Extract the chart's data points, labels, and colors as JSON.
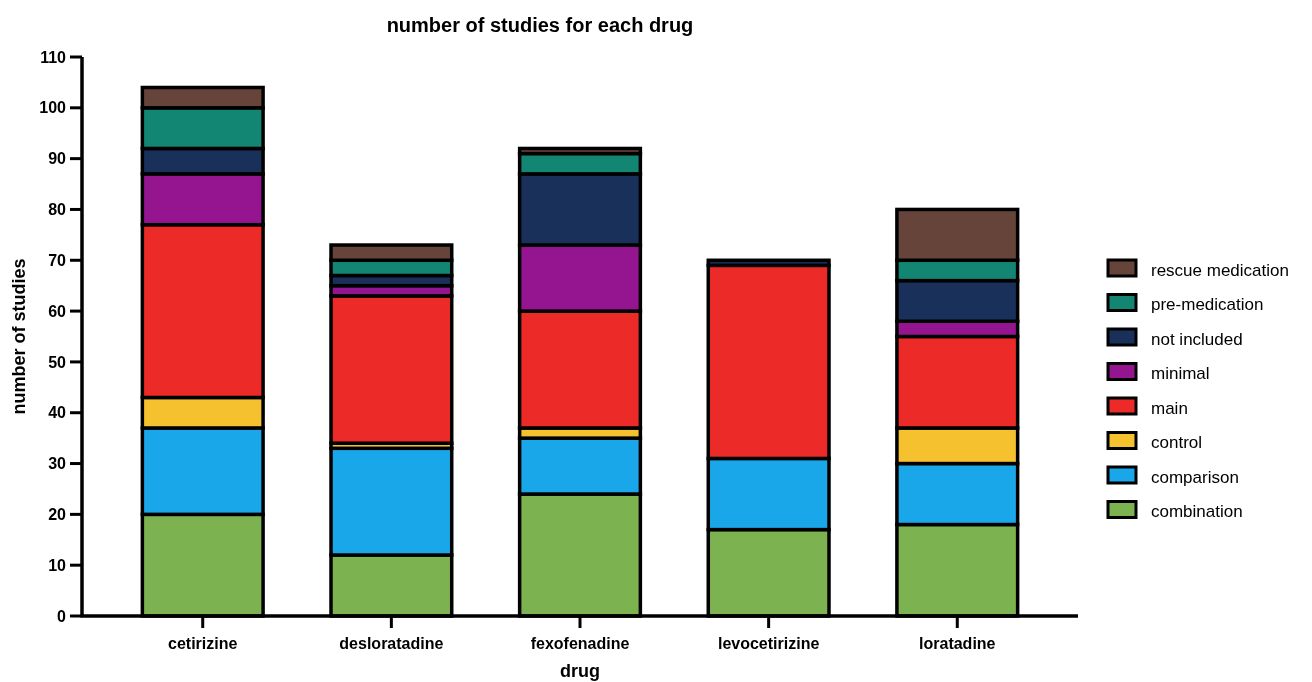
{
  "chart_data": {
    "type": "bar",
    "stacked": true,
    "title": "number of studies for each drug",
    "xlabel": "drug",
    "ylabel": "number of studies",
    "categories": [
      "cetirizine",
      "desloratadine",
      "fexofenadine",
      "levocetirizine",
      "loratadine"
    ],
    "series": [
      {
        "name": "combination",
        "color": "#7cb350",
        "values": [
          20,
          12,
          24,
          17,
          18
        ]
      },
      {
        "name": "comparison",
        "color": "#19a7ea",
        "values": [
          17,
          21,
          11,
          14,
          12
        ]
      },
      {
        "name": "control",
        "color": "#f5c12e",
        "values": [
          6,
          1,
          2,
          0,
          7
        ]
      },
      {
        "name": "main",
        "color": "#ec2a28",
        "values": [
          34,
          29,
          23,
          38,
          18
        ]
      },
      {
        "name": "minimal",
        "color": "#951490",
        "values": [
          10,
          2,
          13,
          0,
          3
        ]
      },
      {
        "name": "not included",
        "color": "#18305a",
        "values": [
          5,
          2,
          14,
          1,
          8
        ]
      },
      {
        "name": "pre-medication",
        "color": "#128672",
        "values": [
          8,
          3,
          4,
          0,
          4
        ]
      },
      {
        "name": "rescue medication",
        "color": "#664439",
        "values": [
          4,
          3,
          1,
          0,
          10
        ]
      }
    ],
    "ylim": [
      0,
      110
    ],
    "yticks": [
      0,
      10,
      20,
      30,
      40,
      50,
      60,
      70,
      80,
      90,
      100,
      110
    ],
    "grid": false,
    "legend": "right"
  }
}
